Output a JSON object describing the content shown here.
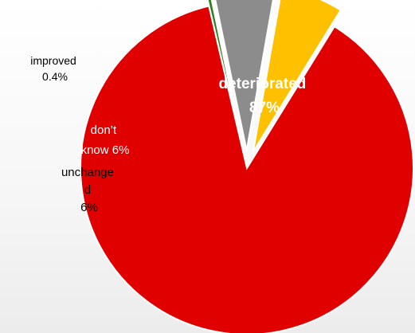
{
  "chart_data": {
    "type": "pie",
    "title": "",
    "slices": [
      {
        "label": "deteriorated",
        "value": 87,
        "display": "87%",
        "color": "#e00000"
      },
      {
        "label": "improved",
        "value": 0.4,
        "display": "0.4%",
        "color": "#2e7d1e"
      },
      {
        "label": "don’t know",
        "value": 6,
        "display": "6%",
        "color": "#8c8c8c"
      },
      {
        "label": "unchanged",
        "value": 6,
        "display": "6%",
        "color": "#ffc000"
      }
    ],
    "exploded": [
      "improved",
      "don’t know",
      "unchanged"
    ],
    "legend": "none"
  },
  "labels": {
    "deteriorated": [
      "deteriorated",
      "87%"
    ],
    "improved": [
      "improved",
      "0.4%"
    ],
    "dont_know": [
      "don’t",
      "know 6%"
    ],
    "unchanged": [
      "unchange",
      "d",
      "6%"
    ]
  },
  "colors": {
    "label_light": "#ffffff",
    "label_dark": "#000000",
    "slice_border": "#ffffff"
  }
}
